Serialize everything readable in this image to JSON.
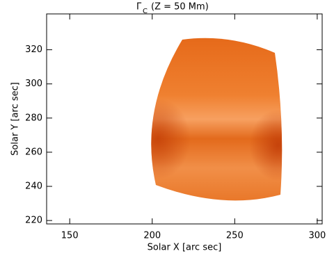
{
  "chart_data": {
    "type": "image",
    "title_symbol": "Γ",
    "title_subscript": "C",
    "title_rest": "(Z = 50 Mm)",
    "x_label": "Solar X [arc sec]",
    "y_label": "Solar Y [arc sec]",
    "xlim": [
      136,
      303
    ],
    "xticks": [
      150,
      200,
      250,
      300
    ],
    "ylim": [
      218,
      341
    ],
    "yticks": [
      220,
      240,
      260,
      280,
      300,
      320
    ]
  }
}
